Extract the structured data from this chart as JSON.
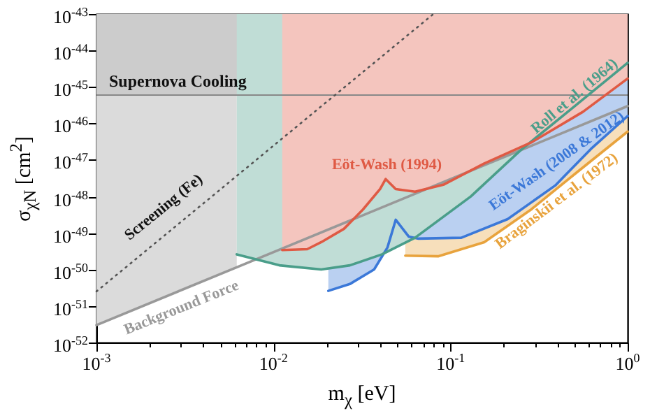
{
  "chart_data": {
    "type": "line",
    "xlabel": "m$_{χ}$ [eV]",
    "ylabel": "σ$_{χN}$ [cm$^{2}$]",
    "log": "xy",
    "grid": false,
    "xlim": [
      0.001,
      1
    ],
    "ylim": [
      1e-52,
      1e-43
    ],
    "xticks": [
      {
        "value": 0.001,
        "label": "10$^{-3}$"
      },
      {
        "value": 0.002,
        "label": null
      },
      {
        "value": 0.003,
        "label": null
      },
      {
        "value": 0.004,
        "label": null
      },
      {
        "value": 0.005,
        "label": null
      },
      {
        "value": 0.006,
        "label": null
      },
      {
        "value": 0.007,
        "label": null
      },
      {
        "value": 0.008,
        "label": null
      },
      {
        "value": 0.009,
        "label": null
      },
      {
        "value": 0.01,
        "label": "10$^{-2}$"
      },
      {
        "value": 0.02,
        "label": null
      },
      {
        "value": 0.03,
        "label": null
      },
      {
        "value": 0.04,
        "label": null
      },
      {
        "value": 0.05,
        "label": null
      },
      {
        "value": 0.06,
        "label": null
      },
      {
        "value": 0.07,
        "label": null
      },
      {
        "value": 0.08,
        "label": null
      },
      {
        "value": 0.09,
        "label": null
      },
      {
        "value": 0.1,
        "label": "10$^{-1}$"
      },
      {
        "value": 0.2,
        "label": null
      },
      {
        "value": 0.3,
        "label": null
      },
      {
        "value": 0.4,
        "label": null
      },
      {
        "value": 0.5,
        "label": null
      },
      {
        "value": 0.6,
        "label": null
      },
      {
        "value": 0.7,
        "label": null
      },
      {
        "value": 0.8,
        "label": null
      },
      {
        "value": 0.9,
        "label": null
      },
      {
        "value": 1,
        "label": "10$^{0}$"
      }
    ],
    "yticks": [
      {
        "value": 1e-52,
        "label": "10$^{-52}$"
      },
      {
        "value": 1e-51,
        "label": "10$^{-51}$"
      },
      {
        "value": 1e-50,
        "label": "10$^{-50}$"
      },
      {
        "value": 1e-49,
        "label": "10$^{-49}$"
      },
      {
        "value": 1e-48,
        "label": "10$^{-48}$"
      },
      {
        "value": 1e-47,
        "label": "10$^{-47}$"
      },
      {
        "value": 1e-46,
        "label": "10$^{-46}$"
      },
      {
        "value": 1e-45,
        "label": "10$^{-45}$"
      },
      {
        "value": 1e-44,
        "label": "10$^{-44}$"
      },
      {
        "value": 1e-43,
        "label": "10$^{-43}$"
      }
    ],
    "ref_lines": [
      {
        "axis": "y",
        "value": 6e-46,
        "color": "#888888"
      }
    ],
    "bands": [
      {
        "axis": "y",
        "from": 6e-46,
        "to": 1e-43,
        "label": "Supernova Cooling",
        "color": "#cccccc"
      }
    ],
    "series": [
      {
        "name": "Background Force",
        "color": "#999999",
        "x": [
          0.001,
          0.0062,
          1
        ],
        "values": [
          3e-52,
          1.15e-50,
          3e-46
        ],
        "lower": [
          3e-52,
          1.15e-50,
          null
        ],
        "upper": [
          1e-43,
          1e-43,
          null
        ]
      },
      {
        "name": "Screening (Fe)",
        "line_style": "dotted",
        "color": "#555555",
        "x": [
          0.001,
          0.08
        ],
        "values": [
          2.5e-51,
          1e-43
        ]
      },
      {
        "name": "Braginskii et al. (1972)",
        "color": "#e8a33d",
        "x": [
          0.0555,
          0.085,
          0.155,
          0.285,
          0.52,
          1
        ],
        "values": [
          2.4e-50,
          2.3e-50,
          5.6e-50,
          4.4e-49,
          4.7e-48,
          6e-47
        ],
        "lower": [
          2.4e-50,
          2.3e-50,
          5.6e-50,
          4.4e-49,
          4.7e-48,
          6e-47
        ],
        "upper": [
          1e-43,
          1e-43,
          1e-43,
          1e-43,
          1e-43,
          1e-43
        ]
      },
      {
        "name": "Eöt-Wash (2008 & 2012)",
        "color": "#3b78d8",
        "x": [
          0.0204,
          0.027,
          0.037,
          0.044,
          0.049,
          0.058,
          0.066,
          0.115,
          0.21,
          0.39,
          0.62,
          1
        ],
        "values": [
          2.6e-51,
          4e-51,
          1e-50,
          4e-50,
          2.3e-49,
          8e-50,
          7e-50,
          7.4e-50,
          2.4e-49,
          2e-48,
          2e-47,
          1.6e-46
        ],
        "lower": [
          2.6e-51,
          4e-51,
          1e-50,
          4e-50,
          2.3e-49,
          8e-50,
          7e-50,
          7.4e-50,
          2.4e-49,
          2e-48,
          2e-47,
          1.6e-46
        ],
        "upper": [
          1e-43,
          1e-43,
          1e-43,
          1e-43,
          1e-43,
          1e-43,
          1e-43,
          1e-43,
          1e-43,
          1e-43,
          1e-43,
          1e-43
        ]
      },
      {
        "name": "Roll et al. (1964)",
        "color": "#4a9e8a",
        "x": [
          0.0062,
          0.0108,
          0.0186,
          0.027,
          0.041,
          0.063,
          0.13,
          0.25,
          0.49,
          1
        ],
        "values": [
          2.6e-50,
          1.3e-50,
          1e-50,
          1.3e-50,
          2.6e-50,
          7.4e-50,
          1e-48,
          1.9e-47,
          2.7e-46,
          4.6e-45
        ],
        "lower": [
          2.6e-50,
          1.3e-50,
          1e-50,
          1.3e-50,
          2.6e-50,
          7.4e-50,
          1e-48,
          1.9e-47,
          2.7e-46,
          4.6e-45
        ],
        "upper": [
          1e-43,
          1e-43,
          1e-43,
          1e-43,
          1e-43,
          1e-43,
          1e-43,
          1e-43,
          1e-43,
          1e-43
        ]
      },
      {
        "name": "Eöt-Wash (1994)",
        "color": "#df5a44",
        "x": [
          0.0112,
          0.0155,
          0.0186,
          0.025,
          0.032,
          0.04,
          0.043,
          0.049,
          0.063,
          0.091,
          0.155,
          0.285,
          0.56,
          1
        ],
        "values": [
          3.4e-50,
          3.6e-50,
          5.6e-50,
          1.3e-49,
          4.4e-49,
          1.6e-48,
          3e-48,
          1.6e-48,
          1.35e-48,
          2.1e-48,
          8e-48,
          3e-47,
          2.1e-46,
          1.7e-45
        ],
        "lower": [
          3.4e-50,
          3.6e-50,
          5.6e-50,
          1.3e-49,
          4.4e-49,
          1.6e-48,
          3e-48,
          1.6e-48,
          1.35e-48,
          2.1e-48,
          8e-48,
          3e-47,
          2.1e-46,
          1.7e-45
        ],
        "upper": [
          1e-43,
          1e-43,
          1e-43,
          1e-43,
          1e-43,
          1e-43,
          1e-43,
          1e-43,
          1e-43,
          1e-43,
          1e-43,
          1e-43,
          1e-43,
          1e-43
        ]
      }
    ]
  }
}
